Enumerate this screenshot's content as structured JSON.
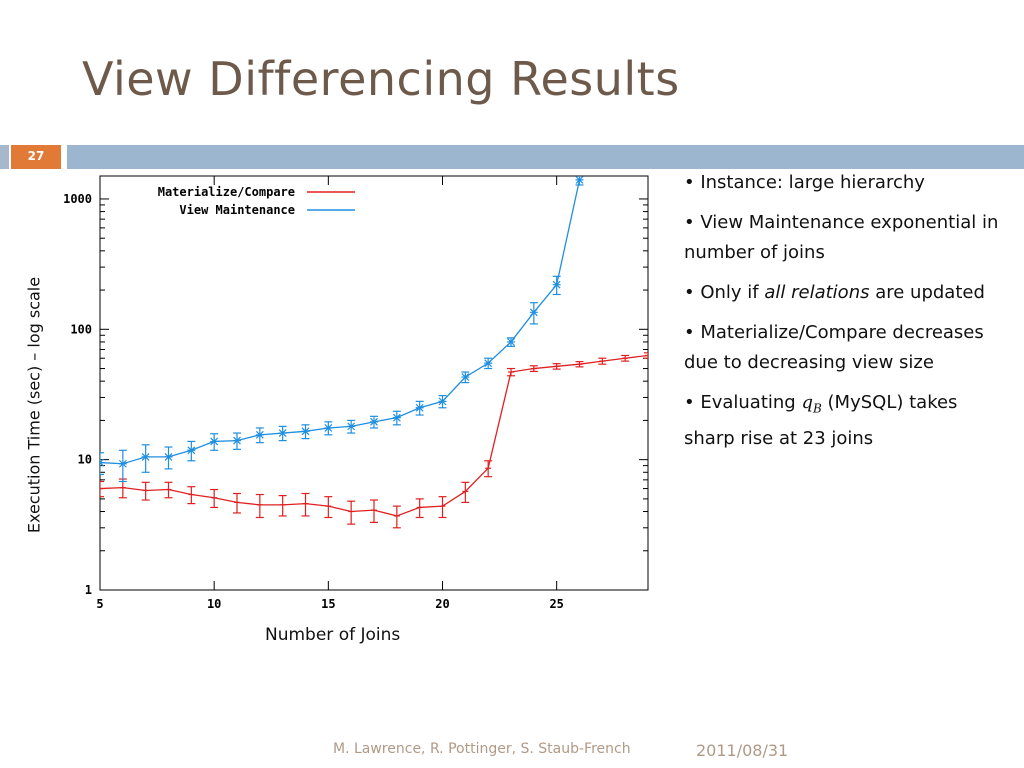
{
  "slide": {
    "title": "View Differencing Results",
    "page_number": "27",
    "footer_authors": "M. Lawrence, R. Pottinger, S. Staub-French",
    "footer_date": "2011/08/31"
  },
  "bullets": [
    {
      "text": "• Instance: large hierarchy"
    },
    {
      "text": "• View Maintenance exponential in number of joins"
    },
    {
      "pre": "• Only if ",
      "em": "all relations",
      "post": " are updated"
    },
    {
      "text": "• Materialize/Compare decreases due to decreasing view size"
    },
    {
      "pre": "• Evaluating ",
      "math": "q",
      "math_sub": "B",
      "post": " (MySQL) takes sharp rise at 23 joins"
    }
  ],
  "colors": {
    "materialize": "#e02020",
    "view_maintenance": "#1f8fe0",
    "title": "#6e5a4b",
    "accent_orange": "#e07a36",
    "band_blue": "#9db6d0"
  },
  "chart_data": {
    "type": "line",
    "xlabel": "Number of Joins",
    "ylabel": "Execution Time (sec) – log scale",
    "xlim": [
      5,
      29
    ],
    "ylim": [
      1,
      1500
    ],
    "yscale": "log",
    "xticks": [
      5,
      10,
      15,
      20,
      25
    ],
    "yticks": [
      1,
      10,
      100,
      1000
    ],
    "legend_position": "top-left",
    "grid": false,
    "series": [
      {
        "name": "Materialize/Compare",
        "x": [
          5,
          6,
          7,
          8,
          9,
          10,
          11,
          12,
          13,
          14,
          15,
          16,
          17,
          18,
          19,
          20,
          21,
          22,
          23,
          24,
          25,
          26,
          27,
          28,
          29
        ],
        "y": [
          6.0,
          6.1,
          5.8,
          5.9,
          5.4,
          5.1,
          4.7,
          4.5,
          4.5,
          4.6,
          4.4,
          4.0,
          4.1,
          3.7,
          4.3,
          4.4,
          5.7,
          8.6,
          47,
          50,
          52,
          54,
          57,
          60,
          63
        ],
        "err": [
          0.8,
          1.0,
          0.9,
          0.8,
          0.8,
          0.8,
          0.8,
          0.9,
          0.8,
          0.9,
          0.8,
          0.8,
          0.8,
          0.7,
          0.7,
          0.8,
          1.0,
          1.2,
          3,
          2.5,
          2.5,
          2.5,
          3,
          3,
          3
        ]
      },
      {
        "name": "View Maintenance",
        "x": [
          5,
          6,
          7,
          8,
          9,
          10,
          11,
          12,
          13,
          14,
          15,
          16,
          17,
          18,
          19,
          20,
          21,
          22,
          23,
          24,
          25,
          26
        ],
        "y": [
          9.5,
          9.3,
          10.5,
          10.5,
          11.8,
          13.8,
          14,
          15.5,
          16,
          16.5,
          17.5,
          18,
          19.5,
          21,
          25,
          28,
          43,
          55,
          80,
          135,
          220,
          1400
        ],
        "err": [
          1.8,
          2.5,
          2.5,
          2.0,
          2.0,
          2.0,
          2.0,
          2.0,
          2.0,
          2.0,
          2.0,
          2.0,
          2.0,
          2.5,
          3,
          3,
          4,
          5,
          6,
          25,
          35,
          120
        ]
      }
    ]
  }
}
